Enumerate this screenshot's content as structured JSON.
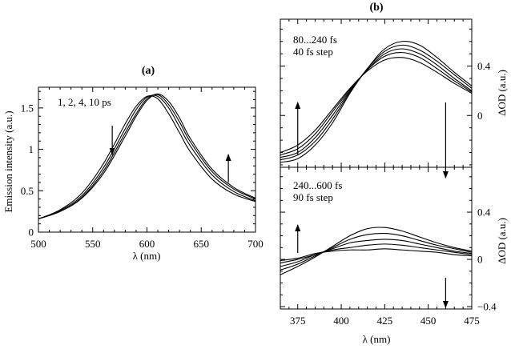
{
  "chart_data": [
    {
      "type": "line",
      "panel_label": "(a)",
      "xlabel": "λ (nm)",
      "ylabel": "Emission intensity (a.u.)",
      "xlim": [
        500,
        700
      ],
      "ylim": [
        0,
        1.75
      ],
      "xticks": [
        "500",
        "550",
        "600",
        "650",
        "700"
      ],
      "yticks": [
        "0",
        "0.5",
        "1",
        "1.5"
      ],
      "annotation": "1, 2, 4, 10 ps",
      "arrows": [
        {
          "x": 568,
          "direction": "down"
        },
        {
          "x": 675,
          "direction": "up"
        }
      ],
      "x": [
        500,
        520,
        540,
        560,
        580,
        590,
        600,
        610,
        620,
        630,
        640,
        660,
        680,
        700
      ],
      "series": [
        {
          "name": "1 ps",
          "peak_nm": 604,
          "values": [
            0.16,
            0.27,
            0.47,
            0.83,
            1.31,
            1.52,
            1.64,
            1.61,
            1.43,
            1.2,
            0.97,
            0.64,
            0.46,
            0.37
          ]
        },
        {
          "name": "2 ps",
          "peak_nm": 607,
          "values": [
            0.16,
            0.26,
            0.44,
            0.78,
            1.25,
            1.48,
            1.63,
            1.64,
            1.5,
            1.27,
            1.04,
            0.69,
            0.49,
            0.38
          ]
        },
        {
          "name": "4 ps",
          "peak_nm": 610,
          "values": [
            0.16,
            0.25,
            0.42,
            0.74,
            1.2,
            1.43,
            1.61,
            1.66,
            1.54,
            1.33,
            1.09,
            0.73,
            0.52,
            0.4
          ]
        },
        {
          "name": "10 ps",
          "peak_nm": 612,
          "values": [
            0.16,
            0.25,
            0.41,
            0.71,
            1.16,
            1.4,
            1.59,
            1.67,
            1.58,
            1.38,
            1.13,
            0.76,
            0.54,
            0.41
          ]
        }
      ]
    },
    {
      "type": "line",
      "panel_label": "(b)",
      "xlabel": "λ (nm)",
      "ylabel": "ΔOD (a.u.)",
      "xlim": [
        365,
        475
      ],
      "ylim": [
        -0.42,
        0.78
      ],
      "yticks": [
        "0",
        "0.4"
      ],
      "annotation_line1": "80...240 fs",
      "annotation_line2": "40 fs step",
      "arrows": [
        {
          "x": 375,
          "direction": "up"
        },
        {
          "x": 460,
          "direction": "down"
        }
      ],
      "x": [
        365,
        375,
        385,
        395,
        405,
        415,
        425,
        435,
        445,
        455,
        465,
        475
      ],
      "series": [
        {
          "name": "80 fs",
          "peak_nm": 433,
          "values": [
            -0.3,
            -0.24,
            -0.12,
            0.05,
            0.22,
            0.36,
            0.45,
            0.47,
            0.43,
            0.35,
            0.26,
            0.18
          ]
        },
        {
          "name": "120 fs",
          "peak_nm": 434,
          "values": [
            -0.32,
            -0.27,
            -0.15,
            0.03,
            0.21,
            0.37,
            0.48,
            0.51,
            0.47,
            0.38,
            0.28,
            0.19
          ]
        },
        {
          "name": "160 fs",
          "peak_nm": 436,
          "values": [
            -0.34,
            -0.3,
            -0.18,
            0.0,
            0.2,
            0.37,
            0.5,
            0.54,
            0.5,
            0.41,
            0.3,
            0.2
          ]
        },
        {
          "name": "200 fs",
          "peak_nm": 437,
          "values": [
            -0.36,
            -0.32,
            -0.21,
            -0.03,
            0.19,
            0.38,
            0.52,
            0.57,
            0.53,
            0.44,
            0.33,
            0.22
          ]
        },
        {
          "name": "240 fs",
          "peak_nm": 438,
          "values": [
            -0.38,
            -0.35,
            -0.24,
            -0.06,
            0.18,
            0.38,
            0.54,
            0.6,
            0.57,
            0.47,
            0.35,
            0.24
          ]
        }
      ]
    },
    {
      "type": "line",
      "panel_label": "",
      "xlabel": "λ (nm)",
      "ylabel": "ΔOD (a.u.)",
      "xlim": [
        365,
        475
      ],
      "ylim": [
        -0.42,
        0.78
      ],
      "xticks": [
        "375",
        "400",
        "425",
        "450",
        "475"
      ],
      "yticks": [
        "−0.4",
        "0",
        "0.4"
      ],
      "annotation_line1": "240...600 fs",
      "annotation_line2": "90 fs step",
      "arrows": [
        {
          "x": 375,
          "direction": "up"
        },
        {
          "x": 460,
          "direction": "down"
        }
      ],
      "x": [
        365,
        375,
        385,
        395,
        405,
        415,
        425,
        435,
        445,
        455,
        465,
        475
      ],
      "series": [
        {
          "name": "240 fs",
          "peak_nm": 421,
          "values": [
            -0.13,
            -0.06,
            0.02,
            0.11,
            0.2,
            0.26,
            0.27,
            0.24,
            0.19,
            0.14,
            0.1,
            0.07
          ]
        },
        {
          "name": "330 fs",
          "peak_nm": 421,
          "values": [
            -0.09,
            -0.04,
            0.03,
            0.1,
            0.17,
            0.21,
            0.22,
            0.2,
            0.16,
            0.12,
            0.09,
            0.06
          ]
        },
        {
          "name": "420 fs",
          "peak_nm": 421,
          "values": [
            -0.06,
            -0.02,
            0.04,
            0.09,
            0.14,
            0.16,
            0.17,
            0.16,
            0.13,
            0.1,
            0.07,
            0.05
          ]
        },
        {
          "name": "510 fs",
          "peak_nm": 421,
          "values": [
            -0.03,
            0.0,
            0.04,
            0.08,
            0.1,
            0.12,
            0.13,
            0.12,
            0.1,
            0.08,
            0.06,
            0.04
          ]
        },
        {
          "name": "600 fs",
          "peak_nm": 421,
          "values": [
            -0.01,
            0.01,
            0.05,
            0.07,
            0.08,
            0.08,
            0.09,
            0.08,
            0.07,
            0.06,
            0.04,
            0.03
          ]
        }
      ]
    }
  ]
}
